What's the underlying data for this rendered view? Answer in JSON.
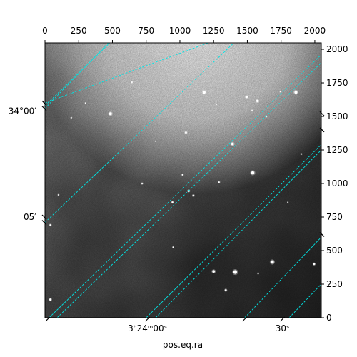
{
  "chart_data": {
    "type": "image",
    "xlabel": "pos.eq.ra",
    "ylabel": "",
    "pixel_axes": {
      "top_x": {
        "ticks": [
          0,
          250,
          500,
          750,
          1000,
          1250,
          1500,
          1750,
          2000
        ],
        "lim": [
          0,
          2048
        ]
      },
      "right_y": {
        "ticks": [
          0,
          250,
          500,
          750,
          1000,
          1250,
          1500,
          1750,
          2000
        ],
        "lim": [
          0,
          2048
        ]
      }
    },
    "world_axes": {
      "ra_labels": [
        {
          "text": "3ʰ24ᵐ00ˢ",
          "pixel": 760
        },
        {
          "text": "30ˢ",
          "pixel": 1760
        }
      ],
      "dec_labels": [
        {
          "text": "34°00′",
          "pixel": 1540
        },
        {
          "text": "05′",
          "pixel": 750
        }
      ]
    },
    "grid": true,
    "grid_color": "#00e5e5",
    "colormap": "gray",
    "background_gradient": "bright at top, darker toward bottom-right",
    "stars": [
      {
        "x": 1410,
        "y": 340,
        "mag": 3.4
      },
      {
        "x": 1540,
        "y": 1080,
        "mag": 3.0
      },
      {
        "x": 1685,
        "y": 415,
        "mag": 3.0
      },
      {
        "x": 1860,
        "y": 1680,
        "mag": 2.8
      },
      {
        "x": 485,
        "y": 1520,
        "mag": 2.6
      },
      {
        "x": 1180,
        "y": 1680,
        "mag": 2.6
      },
      {
        "x": 1390,
        "y": 1295,
        "mag": 2.4
      },
      {
        "x": 1250,
        "y": 345,
        "mag": 2.4
      },
      {
        "x": 1575,
        "y": 1615,
        "mag": 2.2
      },
      {
        "x": 1495,
        "y": 1645,
        "mag": 2.0
      },
      {
        "x": 40,
        "y": 135,
        "mag": 2.0
      },
      {
        "x": 1065,
        "y": 945,
        "mag": 1.8
      },
      {
        "x": 1045,
        "y": 1380,
        "mag": 1.8
      },
      {
        "x": 1340,
        "y": 205,
        "mag": 1.8
      },
      {
        "x": 1995,
        "y": 400,
        "mag": 1.8
      },
      {
        "x": 40,
        "y": 690,
        "mag": 1.6
      },
      {
        "x": 945,
        "y": 860,
        "mag": 1.6
      },
      {
        "x": 1100,
        "y": 910,
        "mag": 1.6
      },
      {
        "x": 1020,
        "y": 1065,
        "mag": 1.4
      },
      {
        "x": 1640,
        "y": 1500,
        "mag": 1.4
      },
      {
        "x": 720,
        "y": 1000,
        "mag": 1.4
      },
      {
        "x": 1290,
        "y": 1010,
        "mag": 1.4
      },
      {
        "x": 195,
        "y": 1490,
        "mag": 1.2
      },
      {
        "x": 645,
        "y": 1755,
        "mag": 1.2
      },
      {
        "x": 950,
        "y": 525,
        "mag": 1.2
      },
      {
        "x": 1745,
        "y": 1685,
        "mag": 1.2
      },
      {
        "x": 1900,
        "y": 1220,
        "mag": 1.2
      },
      {
        "x": 100,
        "y": 915,
        "mag": 1.2
      },
      {
        "x": 1580,
        "y": 330,
        "mag": 1.2
      },
      {
        "x": 1270,
        "y": 1590,
        "mag": 1.0
      },
      {
        "x": 300,
        "y": 1600,
        "mag": 1.0
      },
      {
        "x": 820,
        "y": 1315,
        "mag": 1.0
      },
      {
        "x": 1535,
        "y": 1545,
        "mag": 1.0
      },
      {
        "x": 1800,
        "y": 860,
        "mag": 1.0
      }
    ],
    "grid_lines": [
      {
        "x1": 0,
        "y1": 1580,
        "x2": 480,
        "y2": 2048
      },
      {
        "x1": 0,
        "y1": 710,
        "x2": 1400,
        "y2": 2048
      },
      {
        "x1": 90,
        "y1": 0,
        "x2": 2048,
        "y2": 1900
      },
      {
        "x1": 820,
        "y1": 0,
        "x2": 2048,
        "y2": 1250
      },
      {
        "x1": 1810,
        "y1": 0,
        "x2": 2048,
        "y2": 250
      },
      {
        "x1": 0,
        "y1": 1560,
        "x2": 470,
        "y2": 2048
      },
      {
        "x1": 30,
        "y1": 0,
        "x2": 2048,
        "y2": 1960
      },
      {
        "x1": 750,
        "y1": 0,
        "x2": 2048,
        "y2": 1290
      },
      {
        "x1": 1480,
        "y1": 0,
        "x2": 2048,
        "y2": 600
      },
      {
        "x1": 0,
        "y1": 1600,
        "x2": 1210,
        "y2": 2048
      }
    ]
  }
}
